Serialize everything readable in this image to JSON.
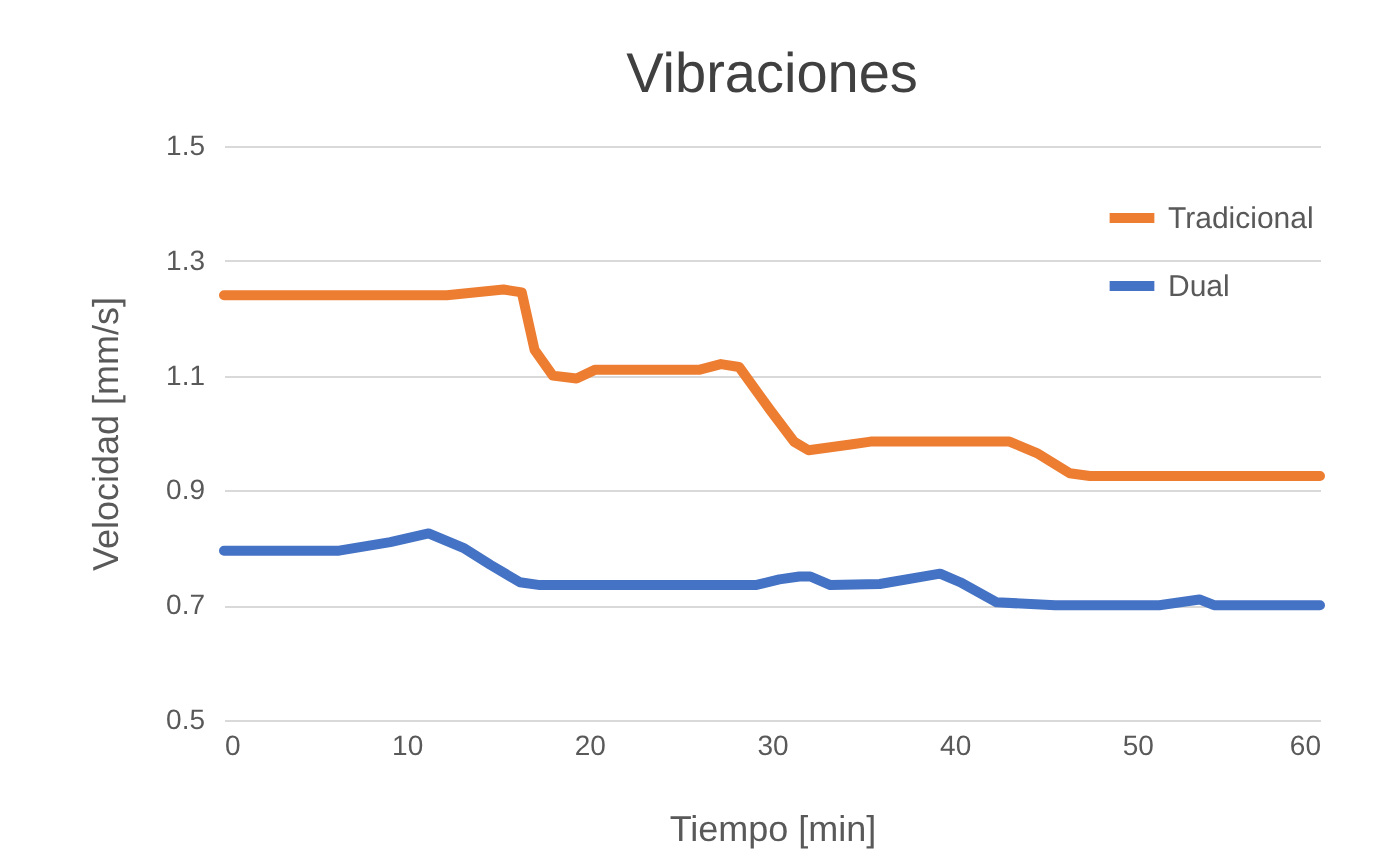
{
  "chart_data": {
    "type": "line",
    "title": "Vibraciones",
    "xlabel": "Tiempo [min]",
    "ylabel": "Velocidad [mm/s]",
    "xlim": [
      0,
      60
    ],
    "xticks": [
      0,
      10,
      20,
      30,
      40,
      50,
      60
    ],
    "ylim": [
      0.5,
      1.5
    ],
    "yticks": [
      0.5,
      0.7,
      0.9,
      1.1,
      1.3,
      1.5
    ],
    "grid": "y",
    "legend": "top right",
    "marker": "none",
    "line_style": "solid",
    "series": [
      {
        "name": "Tradicional",
        "color": "#ed7d31",
        "x": [
          0,
          12.2,
          15.3,
          16.3,
          17,
          18,
          19.3,
          20.3,
          26,
          27.2,
          28.2,
          29.9,
          31.2,
          32,
          34.3,
          35.4,
          43,
          44.5,
          46.3,
          47.4,
          60
        ],
        "values": [
          1.24,
          1.24,
          1.25,
          1.245,
          1.145,
          1.1,
          1.095,
          1.11,
          1.11,
          1.12,
          1.115,
          1.04,
          0.985,
          0.97,
          0.98,
          0.985,
          0.985,
          0.965,
          0.93,
          0.925,
          0.925
        ]
      },
      {
        "name": "Dual",
        "color": "#4472c4",
        "x": [
          0,
          6.3,
          9.1,
          11.2,
          13.1,
          14.6,
          16.2,
          17.3,
          29.1,
          30.4,
          31.5,
          32.1,
          33.2,
          35.9,
          39.2,
          40.3,
          42.3,
          45.5,
          47.4,
          51.2,
          53.4,
          54.2,
          60
        ],
        "values": [
          0.795,
          0.795,
          0.81,
          0.825,
          0.8,
          0.77,
          0.74,
          0.735,
          0.735,
          0.745,
          0.75,
          0.75,
          0.735,
          0.737,
          0.755,
          0.74,
          0.705,
          0.7,
          0.7,
          0.7,
          0.71,
          0.7,
          0.7
        ]
      }
    ]
  }
}
